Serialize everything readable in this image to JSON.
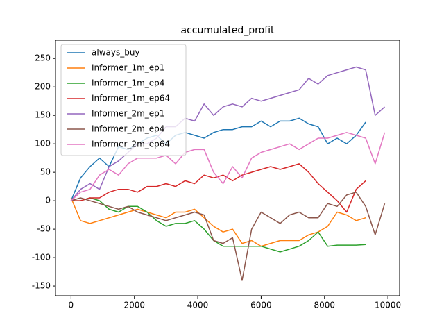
{
  "chart_data": {
    "type": "line",
    "title": "accumulated_profit",
    "x": [
      0,
      300,
      600,
      900,
      1200,
      1500,
      1800,
      2100,
      2400,
      2700,
      3000,
      3300,
      3600,
      3900,
      4200,
      4500,
      4800,
      5100,
      5400,
      5700,
      6000,
      6300,
      6600,
      6900,
      7200,
      7500,
      7800,
      8100,
      8400,
      8700,
      9000,
      9300,
      9600,
      9900
    ],
    "series": [
      {
        "name": "always_buy",
        "color": "#1f77b4",
        "values": [
          0,
          40,
          60,
          75,
          60,
          95,
          90,
          100,
          110,
          115,
          100,
          115,
          120,
          115,
          110,
          120,
          125,
          125,
          130,
          130,
          140,
          130,
          140,
          140,
          145,
          135,
          130,
          100,
          110,
          100,
          115,
          138,
          null,
          null
        ]
      },
      {
        "name": "Informer_1m_ep1",
        "color": "#ff7f0e",
        "values": [
          5,
          -35,
          -40,
          -35,
          -30,
          -25,
          -20,
          -15,
          -20,
          -25,
          -30,
          -20,
          -20,
          -15,
          -30,
          -45,
          -55,
          -50,
          -75,
          -70,
          -80,
          -75,
          -70,
          -70,
          -70,
          -60,
          -55,
          -45,
          -20,
          -25,
          -35,
          -30,
          null,
          null
        ]
      },
      {
        "name": "Informer_1m_ep4",
        "color": "#2ca02c",
        "values": [
          0,
          0,
          5,
          0,
          -15,
          -20,
          -10,
          -10,
          -20,
          -35,
          -45,
          -40,
          -40,
          -35,
          -50,
          -70,
          -80,
          -80,
          -80,
          -80,
          -80,
          -85,
          -90,
          -85,
          -80,
          -70,
          -55,
          -80,
          -78,
          -78,
          -78,
          -77,
          null,
          null
        ]
      },
      {
        "name": "Informer_1m_ep64",
        "color": "#d62728",
        "values": [
          0,
          0,
          5,
          5,
          15,
          20,
          20,
          15,
          25,
          25,
          30,
          25,
          35,
          30,
          45,
          40,
          45,
          35,
          45,
          50,
          55,
          60,
          55,
          60,
          65,
          50,
          30,
          15,
          0,
          -20,
          20,
          35,
          null,
          null
        ]
      },
      {
        "name": "Informer_2m_ep1",
        "color": "#9467bd",
        "values": [
          0,
          20,
          30,
          20,
          60,
          70,
          85,
          100,
          100,
          110,
          130,
          130,
          145,
          140,
          170,
          150,
          165,
          170,
          165,
          180,
          175,
          180,
          185,
          190,
          195,
          215,
          205,
          220,
          225,
          230,
          235,
          230,
          150,
          165
        ]
      },
      {
        "name": "Informer_2m_ep4",
        "color": "#8c564b",
        "values": [
          0,
          5,
          0,
          -5,
          -10,
          -15,
          -10,
          -20,
          -25,
          -30,
          -35,
          -30,
          -25,
          -20,
          -25,
          -70,
          -75,
          -65,
          -140,
          -50,
          -20,
          -30,
          -40,
          -25,
          -20,
          -30,
          -30,
          -5,
          -10,
          10,
          15,
          -10,
          -60,
          -5
        ]
      },
      {
        "name": "Informer_2m_ep64",
        "color": "#e377c2",
        "values": [
          0,
          15,
          20,
          45,
          55,
          45,
          65,
          75,
          75,
          75,
          80,
          65,
          85,
          90,
          90,
          50,
          30,
          60,
          40,
          75,
          85,
          90,
          95,
          100,
          90,
          100,
          110,
          110,
          115,
          120,
          115,
          110,
          65,
          120
        ]
      }
    ],
    "xlim": [
      -490,
      10370
    ],
    "ylim": [
      -167,
      282
    ],
    "xticks": [
      0,
      2000,
      4000,
      6000,
      8000,
      10000
    ],
    "yticks": [
      -150,
      -100,
      -50,
      0,
      50,
      100,
      150,
      200,
      250
    ],
    "legend": "upper left"
  }
}
